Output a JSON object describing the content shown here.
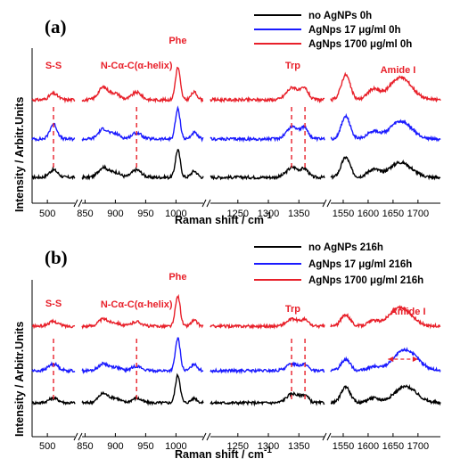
{
  "colors": {
    "black": "#000000",
    "blue": "#1a1aff",
    "red": "#e8202a",
    "annotation": "#e8202a"
  },
  "chart_data": [
    {
      "panel": "(a)",
      "type": "line",
      "ylabel": "Intensity / Arbitr.Units",
      "xlabel_main": "Raman shift / cm",
      "xlabel_sup": "-1",
      "x_segments": [
        {
          "range": [
            475,
            545
          ],
          "ticks": [
            500
          ]
        },
        {
          "range": [
            845,
            1045
          ],
          "ticks": [
            850,
            900,
            950,
            1000
          ]
        },
        {
          "range": [
            1205,
            1392
          ],
          "ticks": [
            1250,
            1300,
            1350
          ]
        },
        {
          "range": [
            1525,
            1745
          ],
          "ticks": [
            1550,
            1600,
            1650,
            1700
          ]
        }
      ],
      "tick_labels": [
        "500",
        "850",
        "900",
        "950",
        "1000",
        "1250",
        "1300",
        "1350",
        "1550",
        "1600",
        "1650",
        "1700"
      ],
      "legend": [
        "no AgNPs 0h",
        "AgNps 17 μg/ml  0h",
        "AgNps 1700 μg/ml  0h"
      ],
      "annotations": [
        {
          "text": "S-S",
          "x": 510
        },
        {
          "text": "N-Cα-C(α-helix)",
          "x": 935
        },
        {
          "text": "Phe",
          "x": 1003
        },
        {
          "text": "Trp",
          "x": 1340
        },
        {
          "text": "Amide I",
          "x": 1660
        }
      ],
      "dashed_markers": [
        510,
        935,
        1338,
        1360
      ],
      "series": [
        {
          "name": "no AgNPs 0h",
          "color": "#000000",
          "offset": 2.0,
          "peaks": [
            [
              510,
              0.3,
              7
            ],
            [
              880,
              0.4,
              8
            ],
            [
              900,
              0.2,
              8
            ],
            [
              935,
              0.3,
              8
            ],
            [
              1003,
              1.1,
              4
            ],
            [
              1030,
              0.25,
              5
            ],
            [
              1340,
              0.4,
              10
            ],
            [
              1360,
              0.3,
              6
            ],
            [
              1555,
              0.8,
              9
            ],
            [
              1610,
              0.3,
              12
            ],
            [
              1665,
              0.6,
              22
            ]
          ]
        },
        {
          "name": "AgNps 17 μg/ml  0h",
          "color": "#1a1aff",
          "offset": 1.0,
          "peaks": [
            [
              510,
              0.6,
              6
            ],
            [
              880,
              0.4,
              8
            ],
            [
              900,
              0.2,
              8
            ],
            [
              935,
              0.25,
              8
            ],
            [
              1003,
              1.2,
              4
            ],
            [
              1030,
              0.25,
              5
            ],
            [
              1340,
              0.5,
              10
            ],
            [
              1360,
              0.4,
              6
            ],
            [
              1555,
              0.9,
              9
            ],
            [
              1610,
              0.3,
              12
            ],
            [
              1665,
              0.7,
              22
            ]
          ]
        },
        {
          "name": "AgNps 1700 μg/ml  0h",
          "color": "#e8202a",
          "offset": 0.0,
          "peaks": [
            [
              510,
              0.25,
              7
            ],
            [
              880,
              0.5,
              8
            ],
            [
              900,
              0.25,
              8
            ],
            [
              935,
              0.3,
              8
            ],
            [
              1003,
              1.3,
              4
            ],
            [
              1030,
              0.3,
              5
            ],
            [
              1340,
              0.5,
              10
            ],
            [
              1360,
              0.4,
              6
            ],
            [
              1555,
              1.0,
              9
            ],
            [
              1610,
              0.4,
              12
            ],
            [
              1665,
              0.9,
              22
            ]
          ]
        }
      ]
    },
    {
      "panel": "(b)",
      "type": "line",
      "ylabel": "Intensity / Arbitr.Units",
      "xlabel_main": "Raman shift / cm",
      "xlabel_sup": "-1",
      "x_segments": [
        {
          "range": [
            475,
            545
          ],
          "ticks": [
            500
          ]
        },
        {
          "range": [
            845,
            1045
          ],
          "ticks": [
            850,
            900,
            950,
            1000
          ]
        },
        {
          "range": [
            1205,
            1392
          ],
          "ticks": [
            1250,
            1300,
            1350
          ]
        },
        {
          "range": [
            1525,
            1745
          ],
          "ticks": [
            1550,
            1600,
            1650,
            1700
          ]
        }
      ],
      "tick_labels": [
        "500",
        "850",
        "900",
        "950",
        "1000",
        "1250",
        "1300",
        "1350",
        "1550",
        "1600",
        "1650",
        "1700"
      ],
      "legend": [
        "no AgNPs 216h",
        "AgNps 17 μg/ml  216h",
        "AgNps 1700 μg/ml  216h"
      ],
      "annotations": [
        {
          "text": "S-S",
          "x": 510
        },
        {
          "text": "N-Cα-C(α-helix)",
          "x": 935
        },
        {
          "text": "Phe",
          "x": 1003
        },
        {
          "text": "Trp",
          "x": 1340
        },
        {
          "text": "Amide I",
          "x": 1680
        }
      ],
      "dashed_markers": [
        510,
        935,
        1338,
        1360
      ],
      "arrow": {
        "from": 1640,
        "to": 1700,
        "level": "blue-series"
      },
      "series": [
        {
          "name": "no AgNPs 216h",
          "color": "#000000",
          "offset": 2.0,
          "peaks": [
            [
              510,
              0.2,
              8
            ],
            [
              880,
              0.4,
              8
            ],
            [
              900,
              0.2,
              8
            ],
            [
              935,
              0.2,
              8
            ],
            [
              1003,
              1.2,
              4
            ],
            [
              1030,
              0.2,
              5
            ],
            [
              1340,
              0.4,
              10
            ],
            [
              1360,
              0.3,
              6
            ],
            [
              1555,
              0.7,
              9
            ],
            [
              1610,
              0.2,
              12
            ],
            [
              1675,
              0.7,
              22
            ]
          ]
        },
        {
          "name": "AgNps 17 μg/ml  216h",
          "color": "#1a1aff",
          "offset": 1.0,
          "peaks": [
            [
              510,
              0.3,
              8
            ],
            [
              880,
              0.3,
              8
            ],
            [
              900,
              0.15,
              8
            ],
            [
              935,
              0.2,
              8
            ],
            [
              1003,
              1.4,
              4
            ],
            [
              1030,
              0.3,
              5
            ],
            [
              1340,
              0.3,
              10
            ],
            [
              1360,
              0.25,
              6
            ],
            [
              1555,
              0.5,
              9
            ],
            [
              1610,
              0.15,
              12
            ],
            [
              1675,
              0.9,
              24
            ]
          ]
        },
        {
          "name": "AgNps 1700 μg/ml  216h",
          "color": "#e8202a",
          "offset": 0.0,
          "peaks": [
            [
              510,
              0.2,
              8
            ],
            [
              880,
              0.3,
              8
            ],
            [
              900,
              0.15,
              8
            ],
            [
              935,
              0.2,
              8
            ],
            [
              1003,
              1.3,
              4
            ],
            [
              1030,
              0.25,
              5
            ],
            [
              1340,
              0.3,
              10
            ],
            [
              1360,
              0.25,
              6
            ],
            [
              1555,
              0.5,
              9
            ],
            [
              1610,
              0.2,
              12
            ],
            [
              1665,
              0.8,
              22
            ]
          ]
        }
      ]
    }
  ]
}
